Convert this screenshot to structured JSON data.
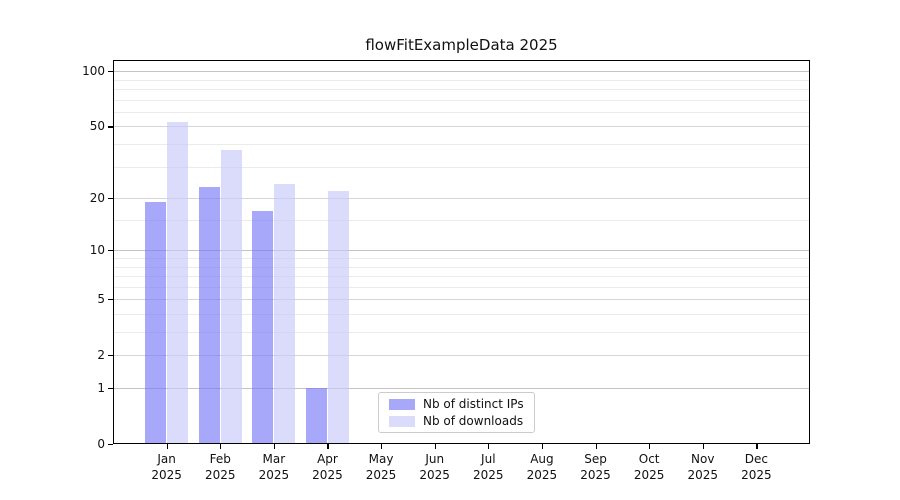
{
  "chart_data": {
    "type": "bar",
    "title": "flowFitExampleData 2025",
    "months": [
      "Jan",
      "Feb",
      "Mar",
      "Apr",
      "May",
      "Jun",
      "Jul",
      "Aug",
      "Sep",
      "Oct",
      "Nov",
      "Dec"
    ],
    "year_label": "2025",
    "series": [
      {
        "name": "Nb of distinct IPs",
        "color": "rgba(121,121,248,0.65)",
        "values": [
          19,
          23,
          17,
          1,
          0,
          0,
          0,
          0,
          0,
          0,
          0,
          0
        ]
      },
      {
        "name": "Nb of downloads",
        "color": "rgba(200,200,250,0.65)",
        "values": [
          53,
          37,
          24,
          22,
          0,
          0,
          0,
          0,
          0,
          0,
          0,
          0
        ]
      }
    ],
    "yscale": "log1p",
    "ylim": [
      0,
      115
    ],
    "ytick_values": [
      0,
      1,
      2,
      5,
      10,
      20,
      50,
      100
    ],
    "ytick_labels": [
      "0",
      "1",
      "2",
      "5",
      "10",
      "20",
      "50",
      "100"
    ],
    "decade_gridlines": [
      1,
      10,
      100
    ],
    "minor_gridlines": [
      3,
      4,
      6,
      7,
      8,
      9,
      15,
      30,
      40,
      60,
      70,
      80,
      90
    ],
    "grid": true,
    "legend_position": "lower center"
  }
}
